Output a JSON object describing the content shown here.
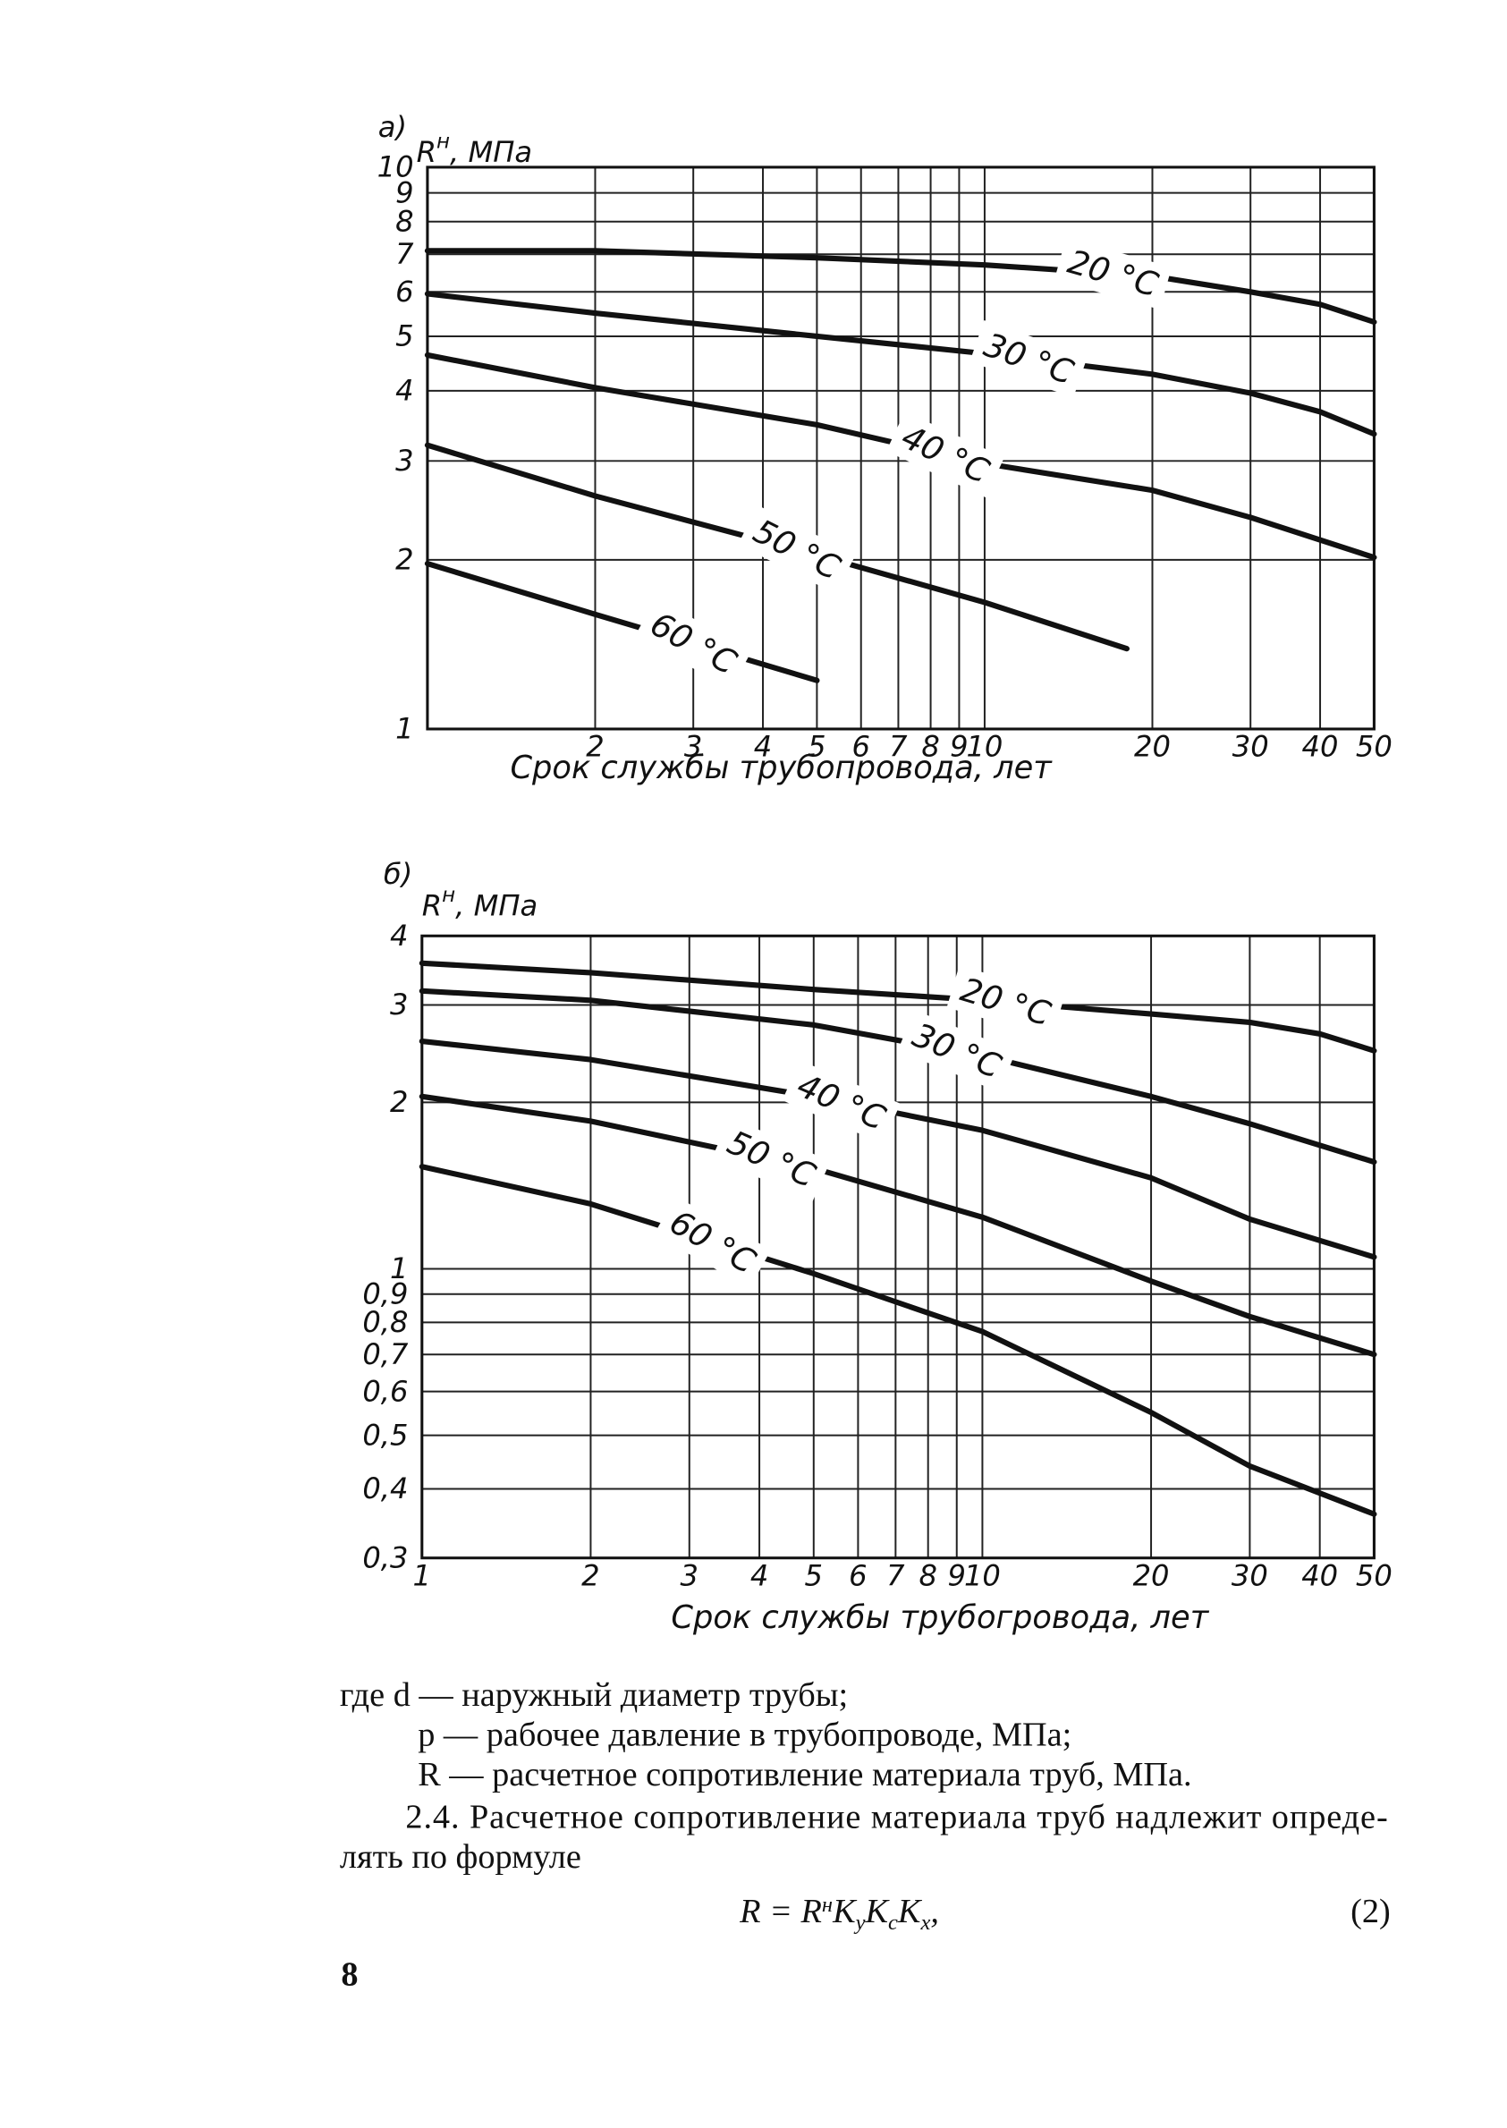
{
  "chart_data": [
    {
      "type": "line",
      "panel_label": "а)",
      "y_label": [
        "R",
        "н",
        ", МПа"
      ],
      "x_label": "Срок службы трубопровода, лет",
      "xscale": "log",
      "yscale": "log",
      "grid": true,
      "xlim": [
        1,
        50
      ],
      "ylim": [
        1,
        10
      ],
      "xticks": [
        2,
        3,
        4,
        5,
        6,
        7,
        8,
        9,
        10,
        20,
        30,
        40,
        50
      ],
      "yticks": [
        1,
        2,
        3,
        4,
        5,
        6,
        7,
        8,
        9,
        10
      ],
      "series": [
        {
          "name": "20 °C",
          "color": "#111111",
          "x": [
            1,
            2,
            5,
            10,
            20,
            30,
            40,
            50
          ],
          "values": [
            7.1,
            7.1,
            6.9,
            6.7,
            6.4,
            6.0,
            5.7,
            5.3
          ]
        },
        {
          "name": "30 °C",
          "color": "#111111",
          "x": [
            1,
            2,
            5,
            10,
            20,
            30,
            40,
            50
          ],
          "values": [
            5.95,
            5.5,
            5.0,
            4.66,
            4.28,
            3.96,
            3.67,
            3.35
          ]
        },
        {
          "name": "40 °C",
          "color": "#111111",
          "x": [
            1,
            2,
            5,
            10,
            20,
            30,
            50
          ],
          "values": [
            4.63,
            4.05,
            3.48,
            2.97,
            2.66,
            2.38,
            2.02
          ]
        },
        {
          "name": "50 °C",
          "color": "#111111",
          "x": [
            1,
            2,
            5,
            10,
            18
          ],
          "values": [
            3.2,
            2.6,
            2.04,
            1.68,
            1.39
          ]
        },
        {
          "name": "60 °C",
          "color": "#111111",
          "x": [
            1,
            2,
            3,
            5
          ],
          "values": [
            1.97,
            1.6,
            1.42,
            1.22
          ]
        }
      ]
    },
    {
      "type": "line",
      "panel_label": "б)",
      "y_label": [
        "R",
        "н",
        ", МПа"
      ],
      "x_label": "Срок службы трубогровода, лет",
      "xscale": "log",
      "yscale": "log",
      "grid": true,
      "xlim": [
        1,
        50
      ],
      "ylim": [
        0.3,
        4
      ],
      "xticks": [
        1,
        2,
        3,
        4,
        5,
        6,
        7,
        8,
        9,
        10,
        20,
        30,
        40,
        50
      ],
      "yticks": [
        {
          "value": 0.3,
          "label": "0,3"
        },
        {
          "value": 0.4,
          "label": "0,4"
        },
        {
          "value": 0.5,
          "label": "0,5"
        },
        {
          "value": 0.6,
          "label": "0,6"
        },
        {
          "value": 0.7,
          "label": "0,7"
        },
        {
          "value": 0.8,
          "label": "0,8"
        },
        {
          "value": 0.9,
          "label": "0,9"
        },
        1,
        2,
        3,
        4
      ],
      "series": [
        {
          "name": "20 °C",
          "color": "#111111",
          "x": [
            1,
            2,
            5,
            10,
            20,
            30,
            40,
            50
          ],
          "values": [
            3.57,
            3.43,
            3.2,
            3.06,
            2.89,
            2.79,
            2.66,
            2.48
          ]
        },
        {
          "name": "30 °C",
          "color": "#111111",
          "x": [
            1,
            2,
            5,
            10,
            20,
            30,
            50
          ],
          "values": [
            3.18,
            3.06,
            2.76,
            2.43,
            2.05,
            1.83,
            1.56
          ]
        },
        {
          "name": "40 °C",
          "color": "#111111",
          "x": [
            1,
            2,
            5,
            10,
            20,
            30,
            50
          ],
          "values": [
            2.58,
            2.39,
            2.05,
            1.78,
            1.46,
            1.23,
            1.05
          ]
        },
        {
          "name": "50 °C",
          "color": "#111111",
          "x": [
            1,
            2,
            5,
            10,
            20,
            30,
            50
          ],
          "values": [
            2.05,
            1.85,
            1.52,
            1.24,
            0.95,
            0.82,
            0.7
          ]
        },
        {
          "name": "60 °C",
          "color": "#111111",
          "x": [
            1,
            2,
            5,
            10,
            20,
            30,
            50
          ],
          "values": [
            1.53,
            1.31,
            0.98,
            0.77,
            0.55,
            0.44,
            0.36
          ]
        }
      ]
    }
  ],
  "text": {
    "lines": [
      "где d — наружный диаметр трубы;",
      "p — рабочее давление в трубопроводе, МПа;",
      "R — расчетное сопротивление материала труб, МПа.",
      "2.4. Расчетное сопротивление материала труб надлежит опреде-",
      "лять по формуле"
    ],
    "formula": [
      "R = R",
      "н",
      "K",
      "у",
      "K",
      "с",
      "K",
      "х",
      ","
    ],
    "formula_number": "(2)",
    "page_number": "8"
  }
}
